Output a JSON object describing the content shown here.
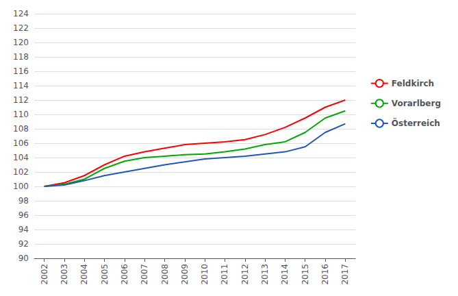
{
  "chart_data": {
    "type": "line",
    "categories": [
      "2002",
      "2003",
      "2004",
      "2005",
      "2006",
      "2007",
      "2008",
      "2009",
      "2010",
      "2011",
      "2012",
      "2013",
      "2014",
      "2015",
      "2016",
      "2017"
    ],
    "series": [
      {
        "name": "Feldkirch",
        "color": "#ff0000",
        "values": [
          100.0,
          100.5,
          101.5,
          103.0,
          104.2,
          104.8,
          105.3,
          105.8,
          106.0,
          106.2,
          106.5,
          107.2,
          108.2,
          109.5,
          111.0,
          112.0
        ]
      },
      {
        "name": "Vorarlberg",
        "color": "#00aa00",
        "values": [
          100.0,
          100.3,
          101.0,
          102.5,
          103.5,
          104.0,
          104.2,
          104.4,
          104.5,
          104.8,
          105.2,
          105.8,
          106.2,
          107.5,
          109.5,
          110.5
        ]
      },
      {
        "name": "Österreich",
        "color": "#2255bb",
        "values": [
          100.0,
          100.2,
          100.8,
          101.5,
          102.0,
          102.5,
          103.0,
          103.4,
          103.8,
          104.0,
          104.2,
          104.5,
          104.8,
          105.5,
          107.5,
          108.7
        ]
      }
    ],
    "ylim": [
      90,
      124
    ],
    "yticks": [
      90,
      92,
      94,
      96,
      98,
      100,
      102,
      104,
      106,
      108,
      110,
      112,
      114,
      116,
      118,
      120,
      122,
      124
    ],
    "grid": true,
    "legend": "right"
  }
}
